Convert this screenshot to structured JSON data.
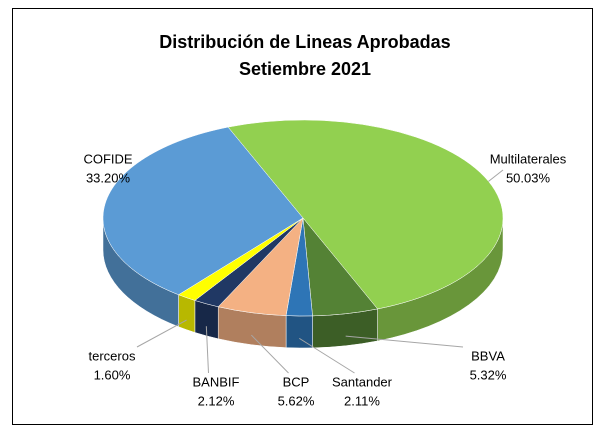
{
  "chart_data": {
    "type": "pie3d",
    "title": "Distribución de Lineas Aprobadas",
    "subtitle": "Setiembre 2021",
    "categories": [
      "Multilaterales",
      "BBVA",
      "Santander",
      "BCP",
      "BANBIF",
      "terceros",
      "COFIDE"
    ],
    "values": [
      50.03,
      5.32,
      2.11,
      5.62,
      2.12,
      1.6,
      33.2
    ],
    "value_labels": [
      "50.03%",
      "5.32%",
      "2.11%",
      "5.62%",
      "2.12%",
      "1.60%",
      "33.20%"
    ],
    "colors": [
      "#92d050",
      "#548235",
      "#2e75b6",
      "#f4b183",
      "#203864",
      "#ffff00",
      "#5b9bd5"
    ]
  }
}
